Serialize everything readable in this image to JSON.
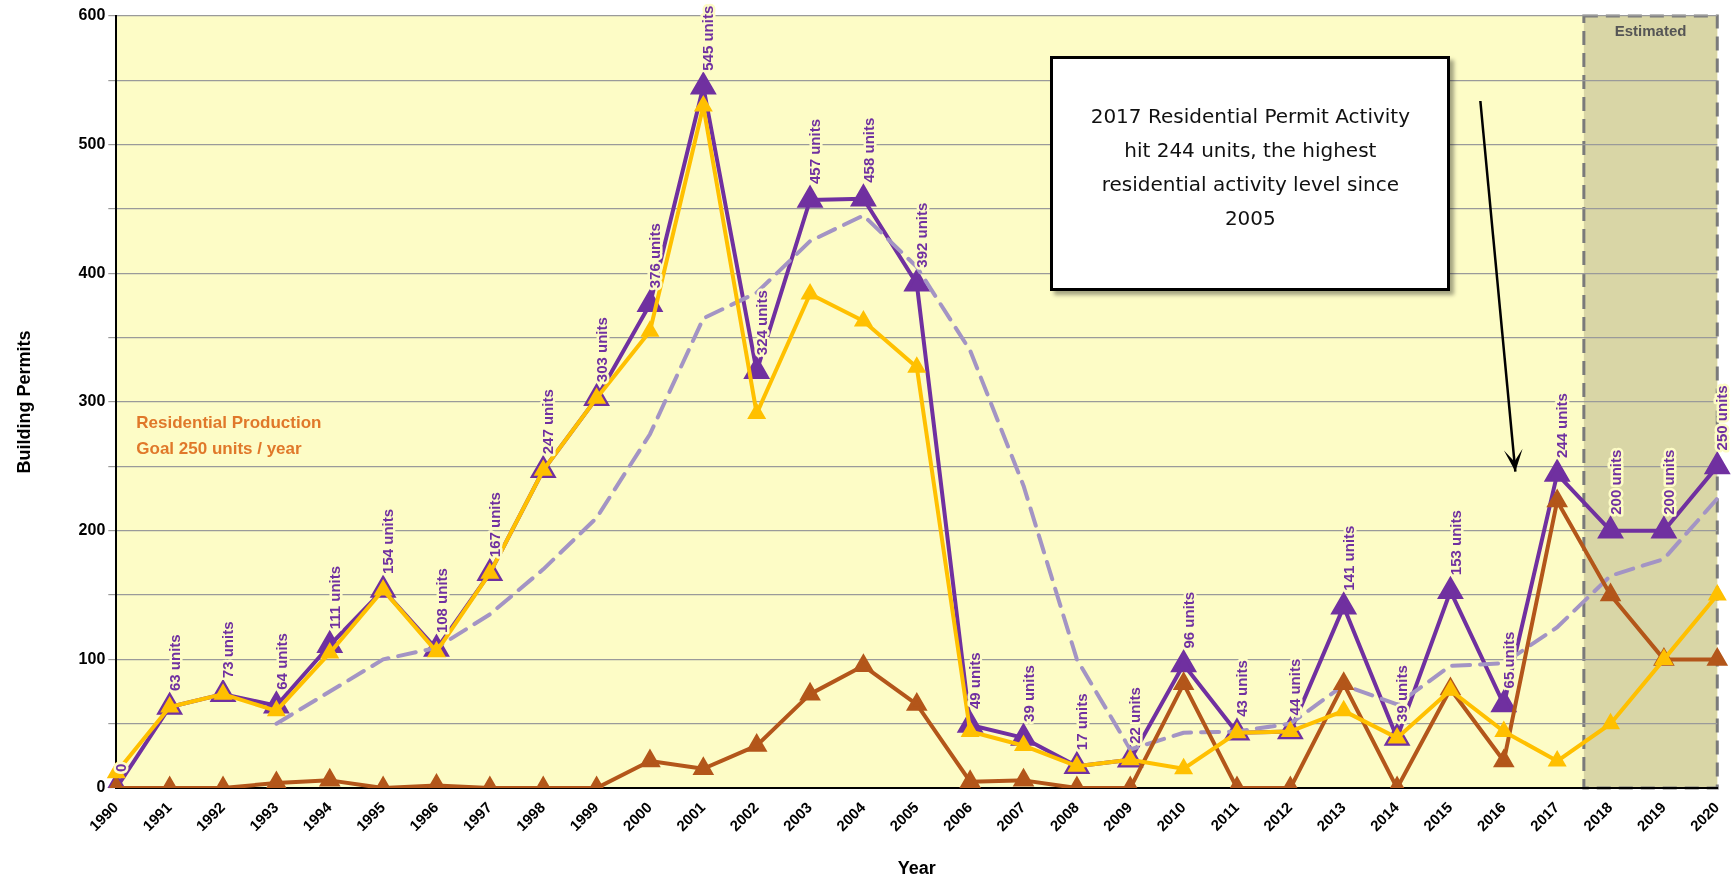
{
  "chart_data": {
    "type": "line",
    "xlabel": "Year",
    "ylabel": "Building Permits",
    "categories": [
      "1990",
      "1991",
      "1992",
      "1993",
      "1994",
      "1995",
      "1996",
      "1997",
      "1998",
      "1999",
      "2000",
      "2001",
      "2002",
      "2003",
      "2004",
      "2005",
      "2006",
      "2007",
      "2008",
      "2009",
      "2010",
      "2011",
      "2012",
      "2013",
      "2014",
      "2015",
      "2016",
      "2017",
      "2018",
      "2019",
      "2020"
    ],
    "series": [
      {
        "color": "#ffc000",
        "values": [
          12,
          63,
          73,
          60,
          105,
          154,
          106,
          167,
          247,
          303,
          355,
          530,
          291,
          384,
          363,
          327,
          44,
          33,
          17,
          22,
          15,
          43,
          44,
          60,
          39,
          76,
          44,
          21,
          50,
          100,
          150
        ]
      },
      {
        "color": "#b3561a",
        "values": [
          0,
          0,
          0,
          4,
          6,
          0,
          2,
          0,
          0,
          0,
          21,
          15,
          33,
          73,
          95,
          65,
          5,
          6,
          0,
          0,
          81,
          0,
          0,
          81,
          0,
          77,
          21,
          223,
          150,
          100,
          100
        ]
      },
      {
        "color": "#a394c4",
        "line_style": "dashed",
        "marker": "none",
        "values": [
          null,
          null,
          null,
          50,
          75,
          100,
          109,
          135,
          170,
          210,
          275,
          365,
          385,
          425,
          445,
          405,
          340,
          235,
          100,
          30,
          43,
          44,
          50,
          80,
          65,
          95,
          97,
          125,
          165,
          178,
          225
        ]
      },
      {
        "color": "#7030a0",
        "values": [
          0,
          63,
          73,
          64,
          111,
          154,
          108,
          167,
          247,
          303,
          376,
          545,
          324,
          457,
          458,
          392,
          49,
          39,
          17,
          22,
          96,
          43,
          44,
          141,
          39,
          153,
          65,
          244,
          200,
          200,
          250
        ],
        "value_labels": [
          "0",
          "63 units",
          "73 units",
          "64 units",
          "111 units",
          "154 units",
          "108 units",
          "167 units",
          "247 units",
          "303 units",
          "376 units",
          "545 units",
          "324 units",
          "457 units",
          "458 units",
          "392 units",
          "49 units",
          "39 units",
          "17 units",
          "22 units",
          "96 units",
          "43 units",
          "44 units",
          "141 units",
          "39 units",
          "153 units",
          "65 units",
          "244 units",
          "200 units",
          "200 units",
          "250 units"
        ]
      }
    ],
    "ylim": [
      0,
      600
    ],
    "yticks": [
      0,
      {
        "value": 50,
        "label": null
      },
      100,
      {
        "value": 150,
        "label": null
      },
      200,
      {
        "value": 250,
        "label": null
      },
      300,
      {
        "value": 350,
        "label": null
      },
      400,
      {
        "value": 450,
        "label": null
      },
      500,
      {
        "value": 550,
        "label": null
      },
      600
    ],
    "grid": "y",
    "legend": false,
    "marker": "triangle",
    "line_style": "solid",
    "bands": [
      {
        "axis": "x",
        "from": "2018",
        "to": "2020",
        "label": "Estimated",
        "color": "#d9d6a6"
      }
    ],
    "annotations": [
      "Residential Production",
      "Goal 250 units / year",
      "2017 Residential Permit Activity hit 244 units, the highest residential activity level since 2005"
    ]
  }
}
